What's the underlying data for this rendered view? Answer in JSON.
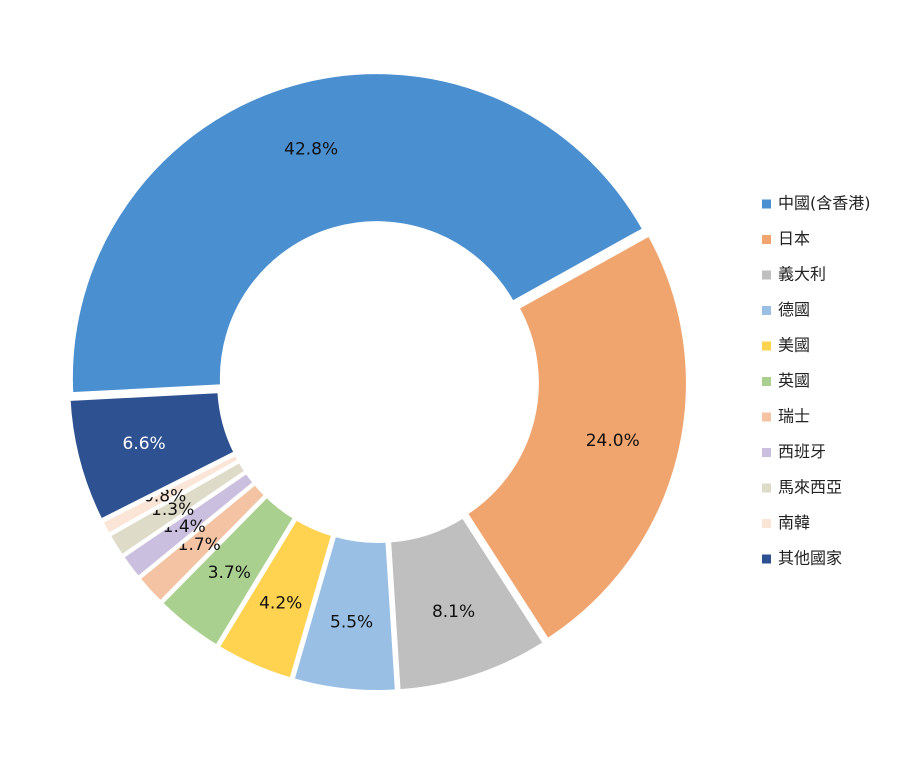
{
  "chart_data": {
    "type": "donut",
    "categories": [
      "中國(含香港)",
      "日本",
      "義大利",
      "德國",
      "美國",
      "英國",
      "瑞士",
      "西班牙",
      "馬來西亞",
      "南韓",
      "其他國家"
    ],
    "values": [
      42.8,
      24.0,
      8.1,
      5.5,
      4.2,
      3.7,
      1.7,
      1.4,
      1.3,
      0.8,
      6.6
    ],
    "value_labels": [
      "42.8%",
      "24.0%",
      "8.1%",
      "5.5%",
      "4.2%",
      "3.7%",
      "1.7%",
      "1.4%",
      "1.3%",
      "0.8%",
      "6.6%"
    ],
    "colors": [
      "#4a8fd0",
      "#f0a46e",
      "#bfbfbf",
      "#99bfe4",
      "#ffd34f",
      "#a9d08e",
      "#f4c3a3",
      "#cbbfdf",
      "#dedbc8",
      "#fbe5d6",
      "#2e5192"
    ],
    "legend": "right"
  }
}
